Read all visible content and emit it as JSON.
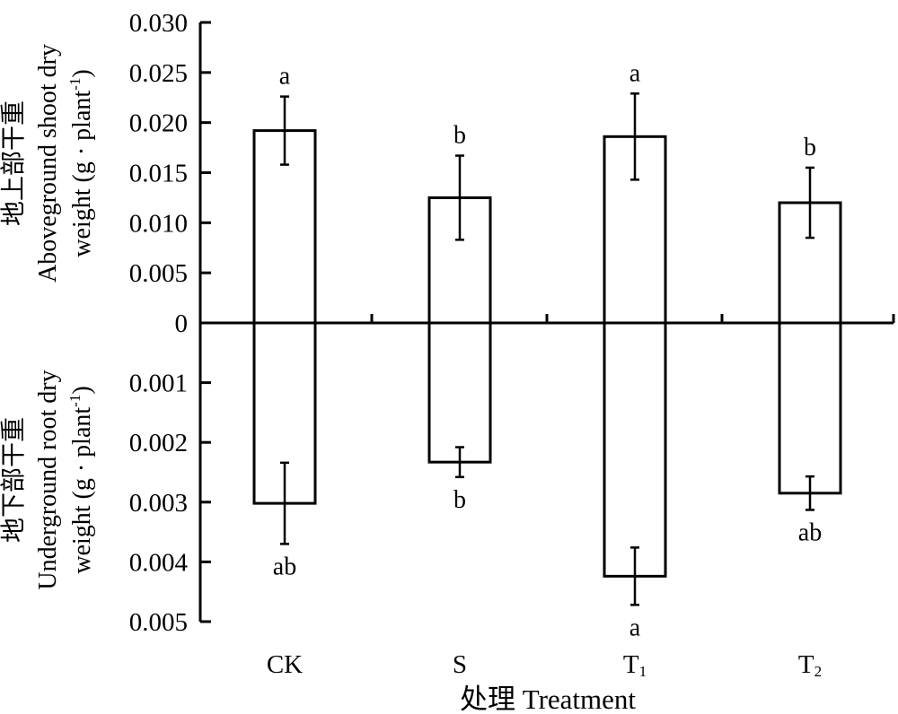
{
  "chart_data": {
    "type": "bar",
    "categories": [
      "CK",
      "S",
      "T1",
      "T2"
    ],
    "category_display": [
      {
        "base": "CK",
        "sub": ""
      },
      {
        "base": "S",
        "sub": ""
      },
      {
        "base": "T",
        "sub": "1"
      },
      {
        "base": "T",
        "sub": "2"
      }
    ],
    "xlabel": "处理 Treatment",
    "top_panel": {
      "ylabel_cn": "地上部干重",
      "ylabel_en1": "Aboveground shoot dry",
      "ylabel_en2": "weight (g · plant",
      "ylabel_sup": "-1",
      "ylabel_close": ")",
      "ylim": [
        0,
        0.03
      ],
      "ticks": [
        "0",
        "0.005",
        "0.010",
        "0.015",
        "0.020",
        "0.025",
        "0.030"
      ],
      "values": [
        0.0192,
        0.0125,
        0.0186,
        0.012
      ],
      "errors": [
        0.0034,
        0.0042,
        0.0043,
        0.0035
      ],
      "significance": [
        "a",
        "b",
        "a",
        "b"
      ]
    },
    "bottom_panel": {
      "ylabel_cn": "地下部干重",
      "ylabel_en1": "Underground root dry",
      "ylabel_en2": "weight (g · plant",
      "ylabel_sup": "-1",
      "ylabel_close": ")",
      "ylim": [
        0,
        0.005
      ],
      "ticks": [
        "0.001",
        "0.002",
        "0.003",
        "0.004",
        "0.005"
      ],
      "values": [
        0.00302,
        0.00233,
        0.00424,
        0.00285
      ],
      "errors": [
        0.00068,
        0.00025,
        0.00048,
        0.00028
      ],
      "significance": [
        "ab",
        "b",
        "a",
        "ab"
      ]
    }
  }
}
